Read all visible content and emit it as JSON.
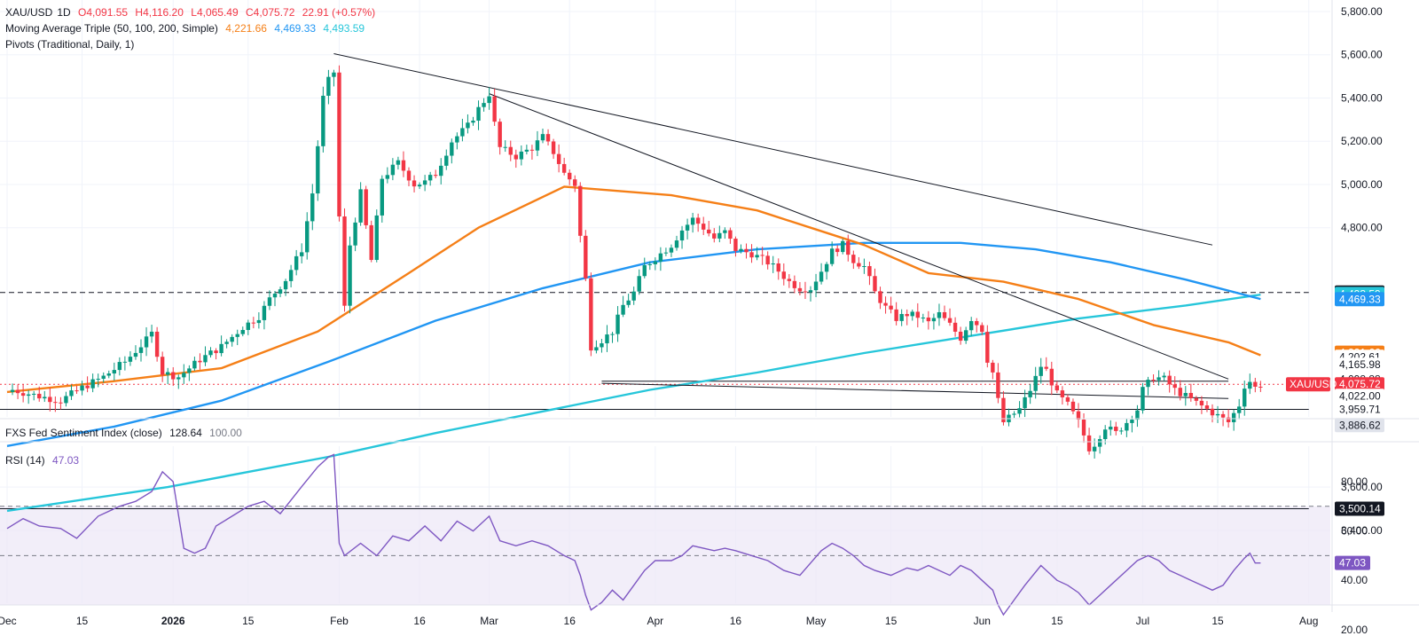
{
  "legend": {
    "symbol": "XAU/USD",
    "interval": "1D",
    "open": "O4,091.55",
    "high": "H4,116.20",
    "low": "L4,065.49",
    "close": "C4,075.72",
    "change": "22.91 (+0.57%)",
    "ma_title": "Moving Average Triple (50, 100, 200, Simple)",
    "ma50": "4,221.66",
    "ma100": "4,469.33",
    "ma200": "4,493.59",
    "pivots_title": "Pivots (Traditional, Daily, 1)",
    "fed_title": "FXS Fed Sentiment Index (close)",
    "fed_value": "128.64",
    "fed_base": "100.00",
    "rsi_title": "RSI (14)",
    "rsi_value": "47.03"
  },
  "colors": {
    "up": "#089981",
    "down": "#f23645",
    "ma50": "#f57f17",
    "ma100": "#2196f3",
    "ma200": "#26c6da",
    "rsi": "#7e57c2",
    "rsi_band": "#ede7f6",
    "grid": "#f0f3fa",
    "axis_text": "#131722"
  },
  "chart_data": [
    {
      "type": "candlestick",
      "title": "XAU/USD",
      "y_ticks": [
        "5,800.00",
        "5,600.00",
        "5,400.00",
        "5,200.00",
        "5,000.00",
        "4,800.00",
        "3,600.00",
        "3,400.00"
      ],
      "y_tick_values": [
        5800,
        5600,
        5400,
        5200,
        5000,
        4800,
        3600,
        3400
      ],
      "ylim": [
        3330,
        5850
      ],
      "x_ticks": [
        "Dec",
        "15",
        "2026",
        "15",
        "Feb",
        "16",
        "Mar",
        "16",
        "Apr",
        "16",
        "May",
        "15",
        "Jun",
        "15",
        "Jul",
        "15",
        "Aug"
      ],
      "x_tick_days": [
        0,
        14,
        31,
        45,
        62,
        77,
        90,
        105,
        121,
        136,
        151,
        165,
        182,
        196,
        212,
        226,
        243
      ],
      "price_labels": [
        {
          "text": "4,500.00",
          "value": 4500,
          "bg": "#131722",
          "fg": "#ffffff"
        },
        {
          "text": "4,493.59",
          "value": 4493.59,
          "bg": "#26c6da",
          "fg": "#ffffff"
        },
        {
          "text": "4,469.33",
          "value": 4469.33,
          "bg": "#2196f3",
          "fg": "#ffffff"
        },
        {
          "text": "4,221.66",
          "value": 4221.66,
          "bg": "#f57f17",
          "fg": "#ffffff"
        },
        {
          "text": "4,202.61",
          "value": 4202.61,
          "bg": "#ffffff",
          "fg": "#131722"
        },
        {
          "text": "4,165.98",
          "value": 4165.98,
          "bg": "#ffffff",
          "fg": "#131722"
        },
        {
          "text": "4,098.88",
          "value": 4098.88,
          "bg": "#ffffff",
          "fg": "#131722"
        },
        {
          "text": "4,075.72",
          "value": 4075.72,
          "bg": "#f23645",
          "fg": "#ffffff"
        },
        {
          "text": "4,022.00",
          "value": 4022,
          "bg": "#ffffff",
          "fg": "#131722"
        },
        {
          "text": "3,959.71",
          "value": 3959.71,
          "bg": "#ffffff",
          "fg": "#131722"
        },
        {
          "text": "3,886.62",
          "value": 3886.62,
          "bg": "#e0e3eb",
          "fg": "#131722"
        },
        {
          "text": "3,500.14",
          "value": 3500.14,
          "bg": "#131722",
          "fg": "#ffffff"
        }
      ],
      "symbol_tag": {
        "text": "XAU/USD",
        "value": 4075.72
      },
      "candle_anchors": [
        [
          1,
          4050
        ],
        [
          6,
          4020
        ],
        [
          10,
          4000
        ],
        [
          14,
          4060
        ],
        [
          18,
          4110
        ],
        [
          22,
          4180
        ],
        [
          26,
          4280
        ],
        [
          27,
          4310
        ],
        [
          29,
          4130
        ],
        [
          32,
          4110
        ],
        [
          36,
          4190
        ],
        [
          40,
          4250
        ],
        [
          44,
          4340
        ],
        [
          47,
          4390
        ],
        [
          49,
          4470
        ],
        [
          52,
          4560
        ],
        [
          55,
          4700
        ],
        [
          57,
          4960
        ],
        [
          59,
          5400
        ],
        [
          60,
          5480
        ],
        [
          61,
          5520
        ],
        [
          62,
          4850
        ],
        [
          63,
          4430
        ],
        [
          64,
          4720
        ],
        [
          66,
          4960
        ],
        [
          68,
          4650
        ],
        [
          70,
          5030
        ],
        [
          73,
          5100
        ],
        [
          76,
          5000
        ],
        [
          78,
          5010
        ],
        [
          80,
          5050
        ],
        [
          83,
          5200
        ],
        [
          86,
          5270
        ],
        [
          88,
          5350
        ],
        [
          90,
          5420
        ],
        [
          91,
          5280
        ],
        [
          92,
          5170
        ],
        [
          95,
          5130
        ],
        [
          98,
          5170
        ],
        [
          100,
          5220
        ],
        [
          102,
          5150
        ],
        [
          104,
          5050
        ],
        [
          106,
          5000
        ],
        [
          107,
          4760
        ],
        [
          108,
          4560
        ],
        [
          109,
          4250
        ],
        [
          111,
          4280
        ],
        [
          113,
          4320
        ],
        [
          115,
          4440
        ],
        [
          117,
          4500
        ],
        [
          119,
          4620
        ],
        [
          121,
          4660
        ],
        [
          124,
          4720
        ],
        [
          126,
          4790
        ],
        [
          128,
          4840
        ],
        [
          130,
          4800
        ],
        [
          132,
          4750
        ],
        [
          134,
          4780
        ],
        [
          136,
          4700
        ],
        [
          139,
          4680
        ],
        [
          142,
          4640
        ],
        [
          144,
          4600
        ],
        [
          146,
          4550
        ],
        [
          148,
          4520
        ],
        [
          150,
          4520
        ],
        [
          152,
          4600
        ],
        [
          154,
          4690
        ],
        [
          156,
          4720
        ],
        [
          158,
          4650
        ],
        [
          160,
          4620
        ],
        [
          162,
          4500
        ],
        [
          164,
          4430
        ],
        [
          166,
          4380
        ],
        [
          168,
          4400
        ],
        [
          170,
          4390
        ],
        [
          172,
          4360
        ],
        [
          174,
          4400
        ],
        [
          176,
          4350
        ],
        [
          178,
          4290
        ],
        [
          180,
          4380
        ],
        [
          182,
          4330
        ],
        [
          183,
          4190
        ],
        [
          184,
          4130
        ],
        [
          185,
          4000
        ],
        [
          186,
          3900
        ],
        [
          187,
          3920
        ],
        [
          189,
          3960
        ],
        [
          191,
          4050
        ],
        [
          193,
          4160
        ],
        [
          194,
          4140
        ],
        [
          196,
          4030
        ],
        [
          198,
          3980
        ],
        [
          200,
          3900
        ],
        [
          202,
          3780
        ],
        [
          203,
          3800
        ],
        [
          205,
          3880
        ],
        [
          207,
          3850
        ],
        [
          209,
          3900
        ],
        [
          211,
          3960
        ],
        [
          212,
          4050
        ],
        [
          214,
          4110
        ],
        [
          216,
          4100
        ],
        [
          218,
          4050
        ],
        [
          220,
          4020
        ],
        [
          222,
          3990
        ],
        [
          224,
          3960
        ],
        [
          226,
          3930
        ],
        [
          228,
          3900
        ],
        [
          230,
          3980
        ],
        [
          231,
          4070
        ],
        [
          232,
          4090
        ],
        [
          233,
          4060
        ],
        [
          234,
          4076
        ]
      ],
      "ma50": [
        [
          0,
          4040
        ],
        [
          20,
          4090
        ],
        [
          40,
          4150
        ],
        [
          58,
          4320
        ],
        [
          75,
          4590
        ],
        [
          88,
          4800
        ],
        [
          104,
          4990
        ],
        [
          124,
          4950
        ],
        [
          140,
          4880
        ],
        [
          150,
          4800
        ],
        [
          160,
          4720
        ],
        [
          172,
          4590
        ],
        [
          186,
          4550
        ],
        [
          200,
          4470
        ],
        [
          214,
          4350
        ],
        [
          228,
          4270
        ],
        [
          234,
          4210
        ]
      ],
      "ma100": [
        [
          0,
          3790
        ],
        [
          20,
          3880
        ],
        [
          40,
          4000
        ],
        [
          60,
          4180
        ],
        [
          80,
          4370
        ],
        [
          100,
          4520
        ],
        [
          120,
          4640
        ],
        [
          140,
          4700
        ],
        [
          160,
          4730
        ],
        [
          178,
          4730
        ],
        [
          192,
          4700
        ],
        [
          206,
          4640
        ],
        [
          220,
          4560
        ],
        [
          234,
          4470
        ]
      ],
      "ma200": [
        [
          0,
          3490
        ],
        [
          30,
          3600
        ],
        [
          60,
          3740
        ],
        [
          80,
          3850
        ],
        [
          100,
          3950
        ],
        [
          120,
          4050
        ],
        [
          140,
          4130
        ],
        [
          160,
          4220
        ],
        [
          180,
          4300
        ],
        [
          200,
          4380
        ],
        [
          220,
          4440
        ],
        [
          234,
          4490
        ]
      ],
      "trend_lines": [
        {
          "from": [
            61,
            5605
          ],
          "to": [
            225,
            4720
          ]
        },
        {
          "from": [
            90,
            5420
          ],
          "to": [
            228,
            4100
          ]
        },
        {
          "from": [
            111,
            4080
          ],
          "to": [
            228,
            4010
          ]
        }
      ],
      "horizontal_levels": [
        {
          "value": 4500,
          "style": "dashed",
          "to_day": 243
        },
        {
          "value": 3959.71,
          "style": "solid",
          "to_day": 243
        },
        {
          "value": 3500.14,
          "style": "solid",
          "to_day": 243
        },
        {
          "value": 4075.72,
          "style": "dotted",
          "to_day": 243
        },
        {
          "value": 4090,
          "style": "solid",
          "from_day": 111,
          "to_day": 228
        }
      ]
    },
    {
      "type": "line",
      "title": "RSI (14)",
      "y_ticks": [
        "80.00",
        "60.00",
        "40.00",
        "20.00"
      ],
      "y_tick_values": [
        80,
        60,
        40,
        20
      ],
      "ylim": [
        15,
        95
      ],
      "band": [
        30,
        70
      ],
      "midline": 50,
      "current_label": {
        "text": "47.03",
        "value": 47.03
      },
      "series": [
        {
          "values": [
            [
              0,
              61
            ],
            [
              3,
              65
            ],
            [
              6,
              62
            ],
            [
              10,
              61
            ],
            [
              13,
              57
            ],
            [
              17,
              66
            ],
            [
              21,
              70
            ],
            [
              24,
              72
            ],
            [
              27,
              76
            ],
            [
              29,
              84
            ],
            [
              31,
              80
            ],
            [
              33,
              53
            ],
            [
              35,
              51
            ],
            [
              37,
              53
            ],
            [
              39,
              62
            ],
            [
              42,
              66
            ],
            [
              45,
              70
            ],
            [
              48,
              72
            ],
            [
              51,
              67
            ],
            [
              55,
              78
            ],
            [
              58,
              86
            ],
            [
              60,
              90
            ],
            [
              61,
              91
            ],
            [
              62,
              55
            ],
            [
              63,
              50
            ],
            [
              66,
              55
            ],
            [
              69,
              50
            ],
            [
              72,
              58
            ],
            [
              75,
              56
            ],
            [
              78,
              62
            ],
            [
              81,
              56
            ],
            [
              84,
              64
            ],
            [
              87,
              60
            ],
            [
              90,
              66
            ],
            [
              92,
              56
            ],
            [
              95,
              54
            ],
            [
              98,
              56
            ],
            [
              101,
              54
            ],
            [
              104,
              50
            ],
            [
              106,
              48
            ],
            [
              107,
              42
            ],
            [
              108,
              34
            ],
            [
              109,
              28
            ],
            [
              111,
              31
            ],
            [
              113,
              36
            ],
            [
              115,
              32
            ],
            [
              117,
              38
            ],
            [
              119,
              44
            ],
            [
              121,
              48
            ],
            [
              124,
              48
            ],
            [
              126,
              50
            ],
            [
              128,
              54
            ],
            [
              130,
              53
            ],
            [
              132,
              52
            ],
            [
              134,
              53
            ],
            [
              136,
              52
            ],
            [
              139,
              50
            ],
            [
              142,
              48
            ],
            [
              145,
              44
            ],
            [
              148,
              42
            ],
            [
              150,
              47
            ],
            [
              152,
              52
            ],
            [
              154,
              55
            ],
            [
              156,
              53
            ],
            [
              158,
              50
            ],
            [
              160,
              46
            ],
            [
              162,
              44
            ],
            [
              165,
              42
            ],
            [
              168,
              45
            ],
            [
              170,
              44
            ],
            [
              172,
              46
            ],
            [
              174,
              44
            ],
            [
              176,
              42
            ],
            [
              178,
              46
            ],
            [
              180,
              44
            ],
            [
              183,
              38
            ],
            [
              184,
              36
            ],
            [
              185,
              30
            ],
            [
              186,
              26
            ],
            [
              188,
              32
            ],
            [
              190,
              38
            ],
            [
              193,
              46
            ],
            [
              194,
              44
            ],
            [
              196,
              40
            ],
            [
              198,
              38
            ],
            [
              200,
              35
            ],
            [
              202,
              30
            ],
            [
              204,
              34
            ],
            [
              206,
              38
            ],
            [
              209,
              44
            ],
            [
              211,
              48
            ],
            [
              213,
              50
            ],
            [
              215,
              48
            ],
            [
              217,
              44
            ],
            [
              219,
              42
            ],
            [
              221,
              40
            ],
            [
              223,
              38
            ],
            [
              225,
              36
            ],
            [
              227,
              38
            ],
            [
              229,
              44
            ],
            [
              231,
              49
            ],
            [
              232,
              51
            ],
            [
              233,
              47
            ],
            [
              234,
              47
            ]
          ]
        }
      ]
    }
  ]
}
